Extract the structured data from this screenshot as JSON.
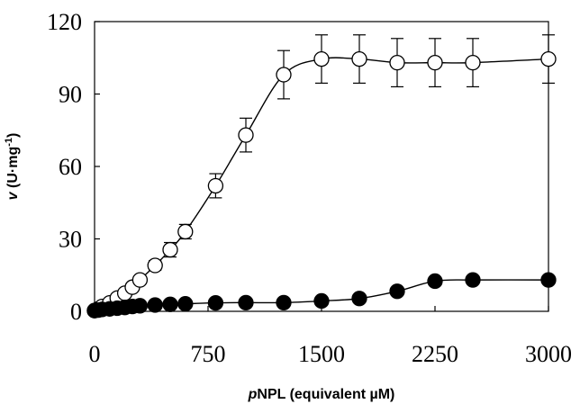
{
  "chart_data": {
    "type": "scatter",
    "xlabel": "pNPL (equivalent µM)",
    "xlabel_italic_prefix": "p",
    "xlabel_rest": "NPL (equivalent µM)",
    "ylabel": "v (U·mg-1)",
    "ylabel_italic_prefix": "v",
    "ylabel_unit_base": "(U·mg",
    "ylabel_unit_sup": "-1",
    "ylabel_unit_close": ")",
    "xlim": [
      0,
      3000
    ],
    "ylim": [
      0,
      120
    ],
    "x_ticks": [
      0,
      750,
      1500,
      2250,
      3000
    ],
    "x_tick_labels": [
      "0",
      "750",
      "1500",
      "2250",
      "3000"
    ],
    "y_ticks": [
      0,
      30,
      60,
      90,
      120
    ],
    "y_tick_labels": [
      "0",
      "30",
      "60",
      "90",
      "120"
    ],
    "grid": false,
    "series": [
      {
        "marker": "open-circle",
        "x": [
          0,
          25,
          50,
          100,
          150,
          200,
          250,
          300,
          400,
          500,
          600,
          800,
          1000,
          1250,
          1500,
          1750,
          2000,
          2250,
          2500,
          3000
        ],
        "y": [
          0.3,
          1,
          2,
          3.5,
          5.5,
          7.5,
          10,
          13,
          19,
          25.5,
          33,
          52,
          73,
          98,
          104.5,
          104.5,
          103,
          103,
          103,
          104.5
        ],
        "err": [
          0,
          0,
          0,
          0,
          0,
          0,
          0,
          0,
          2,
          3,
          3,
          5,
          7,
          10,
          10,
          10,
          10,
          10,
          10,
          10
        ]
      },
      {
        "marker": "filled-circle",
        "x": [
          0,
          25,
          50,
          100,
          150,
          200,
          250,
          300,
          400,
          500,
          600,
          800,
          1000,
          1250,
          1500,
          1750,
          2000,
          2250,
          2500,
          3000
        ],
        "y": [
          0.3,
          0.5,
          0.8,
          1,
          1.3,
          1.6,
          2,
          2.3,
          2.6,
          2.9,
          3.1,
          3.5,
          3.6,
          3.6,
          4.3,
          5.3,
          8.3,
          12.5,
          13,
          13
        ],
        "err": [
          0,
          0,
          0,
          0,
          0,
          0,
          0,
          0,
          0,
          0,
          0,
          0,
          0,
          0,
          0,
          0,
          0,
          0,
          0,
          0
        ]
      }
    ],
    "colors": {
      "line": "#000000",
      "marker_edge": "#000000",
      "marker_fill_open": "#ffffff",
      "marker_fill_filled": "#000000"
    }
  }
}
